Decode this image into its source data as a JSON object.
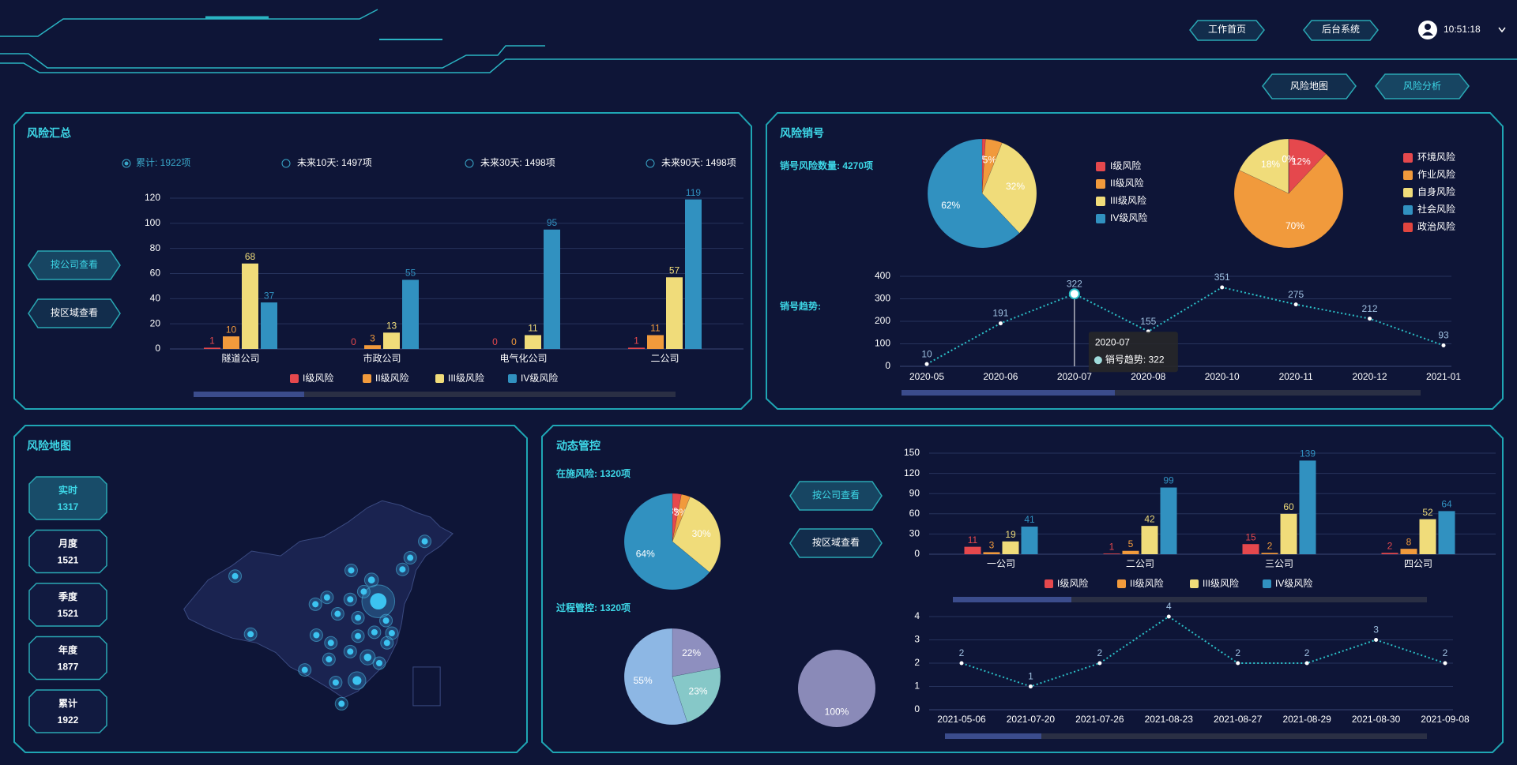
{
  "header": {
    "nav": [
      "工作首页",
      "后台系统"
    ],
    "time": "10:51:18",
    "tabs": [
      "风险地图",
      "风险分析"
    ]
  },
  "summary_panel": {
    "title": "风险汇总",
    "filters": [
      "累计: 1922项",
      "未来10天: 1497项",
      "未来30天: 1498项",
      "未来90天: 1498项"
    ],
    "buttons": [
      "按公司查看",
      "按区域查看"
    ]
  },
  "writeoff_panel": {
    "title": "风险销号",
    "count_label": "销号风险数量: 4270项",
    "trend_label": "销号趋势:"
  },
  "map_panel": {
    "title": "风险地图",
    "items": [
      {
        "label": "实时",
        "value": 1317
      },
      {
        "label": "月度",
        "value": 1521
      },
      {
        "label": "季度",
        "value": 1521
      },
      {
        "label": "年度",
        "value": 1877
      },
      {
        "label": "累计",
        "value": 1922
      }
    ]
  },
  "control_panel": {
    "title": "动态管控",
    "active_label": "在施风险: 1320项",
    "process_label": "过程管控: 1320项",
    "buttons": [
      "按公司查看",
      "按区域查看"
    ]
  },
  "chart_data": [
    {
      "type": "bar",
      "categories": [
        "隧道公司",
        "市政公司",
        "电气化公司",
        "二公司"
      ],
      "series": [
        {
          "name": "I级风险",
          "color": "#e5484d",
          "values": [
            1,
            0,
            0,
            1
          ]
        },
        {
          "name": "II级风险",
          "color": "#f19a3c",
          "values": [
            10,
            3,
            0,
            11
          ]
        },
        {
          "name": "III级风险",
          "color": "#f0dc7a",
          "values": [
            68,
            13,
            11,
            57
          ]
        },
        {
          "name": "IV级风险",
          "color": "#3191c0",
          "values": [
            37,
            55,
            95,
            119
          ]
        }
      ],
      "ylim": [
        0,
        120
      ],
      "yticks": [
        0,
        20,
        40,
        60,
        80,
        100,
        120
      ],
      "grid": true
    },
    {
      "type": "pie",
      "categories": [
        "I级风险",
        "II级风险",
        "III级风险",
        "IV级风险"
      ],
      "values": [
        1,
        5,
        32,
        62
      ],
      "value_labels": [
        "1%",
        "5%",
        "32%",
        "62%"
      ],
      "colors": [
        "#e5484d",
        "#f19a3c",
        "#f0dc7a",
        "#3191c0"
      ]
    },
    {
      "type": "pie",
      "categories": [
        "环境风险",
        "作业风险",
        "自身风险",
        "社会风险",
        "政治风险"
      ],
      "values": [
        12,
        70,
        18,
        0,
        0
      ],
      "value_labels": [
        "12%",
        "70%",
        "18%",
        "0%",
        "0%"
      ],
      "colors": [
        "#e5484d",
        "#f19a3c",
        "#f0dc7a",
        "#3191c0",
        "#e0453f"
      ]
    },
    {
      "type": "line",
      "categories": [
        "2020-05",
        "2020-06",
        "2020-07",
        "2020-08",
        "2020-10",
        "2020-11",
        "2020-12",
        "2021-01"
      ],
      "series": [
        {
          "name": "销号趋势",
          "color": "#2bc0c8",
          "values": [
            10,
            191,
            322,
            155,
            351,
            275,
            212,
            93
          ]
        }
      ],
      "ylim": [
        0,
        400
      ],
      "yticks": [
        0,
        100,
        200,
        300,
        400
      ],
      "grid": true,
      "tooltip": {
        "x": "2020-07",
        "text": "销号趋势: 322"
      }
    },
    {
      "type": "bar",
      "categories": [
        "一公司",
        "二公司",
        "三公司",
        "四公司"
      ],
      "series": [
        {
          "name": "I级风险",
          "color": "#e5484d",
          "values": [
            11,
            1,
            15,
            2
          ]
        },
        {
          "name": "II级风险",
          "color": "#f19a3c",
          "values": [
            3,
            5,
            2,
            8
          ]
        },
        {
          "name": "III级风险",
          "color": "#f0dc7a",
          "values": [
            19,
            42,
            60,
            52
          ]
        },
        {
          "name": "IV级风险",
          "color": "#3191c0",
          "values": [
            41,
            99,
            139,
            64
          ]
        }
      ],
      "ylim": [
        0,
        150
      ],
      "yticks": [
        0,
        30,
        60,
        90,
        120,
        150
      ],
      "grid": true
    },
    {
      "type": "pie",
      "values": [
        3,
        3,
        30,
        64
      ],
      "value_labels": [
        "3%",
        "3%",
        "30%",
        "64%"
      ],
      "colors": [
        "#e5484d",
        "#f19a3c",
        "#f0dc7a",
        "#3191c0"
      ]
    },
    {
      "type": "pie",
      "values": [
        22,
        23,
        55
      ],
      "value_labels": [
        "22%",
        "23%",
        "55%"
      ],
      "colors": [
        "#8e8fbf",
        "#86c8c8",
        "#8db7e4"
      ]
    },
    {
      "type": "pie",
      "values": [
        0,
        100
      ],
      "value_labels": [
        "0%",
        "100%"
      ],
      "colors": [
        "#8e8fbf",
        "#8a8ab8"
      ]
    },
    {
      "type": "line",
      "categories": [
        "2021-05-06",
        "2021-07-20",
        "2021-07-26",
        "2021-08-23",
        "2021-08-27",
        "2021-08-29",
        "2021-08-30",
        "2021-09-08"
      ],
      "values": [
        2,
        1,
        2,
        4,
        2,
        2,
        3,
        2
      ],
      "color": "#2bc0c8",
      "ylim": [
        0,
        4
      ],
      "yticks": [
        0,
        1,
        2,
        3,
        4
      ],
      "grid": true
    }
  ]
}
